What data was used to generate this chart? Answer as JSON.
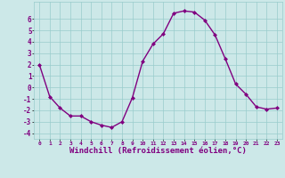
{
  "x": [
    0,
    1,
    2,
    3,
    4,
    5,
    6,
    7,
    8,
    9,
    10,
    11,
    12,
    13,
    14,
    15,
    16,
    17,
    18,
    19,
    20,
    21,
    22,
    23
  ],
  "y": [
    2,
    -0.8,
    -1.8,
    -2.5,
    -2.5,
    -3.0,
    -3.3,
    -3.5,
    -3.0,
    -0.9,
    2.3,
    3.8,
    4.7,
    6.5,
    6.7,
    6.6,
    5.9,
    4.6,
    2.5,
    0.3,
    -0.6,
    -1.7,
    -1.9,
    -1.8
  ],
  "line_color": "#800080",
  "marker": "D",
  "marker_size": 2.0,
  "line_width": 1.0,
  "xlabel": "Windchill (Refroidissement éolien,°C)",
  "xlabel_fontsize": 6.5,
  "background_color": "#cce8e8",
  "grid_color": "#99cccc",
  "tick_label_color": "#800080",
  "axis_label_color": "#800080",
  "xlim": [
    -0.5,
    23.5
  ],
  "ylim": [
    -4.5,
    7.5
  ],
  "yticks": [
    -4,
    -3,
    -2,
    -1,
    0,
    1,
    2,
    3,
    4,
    5,
    6
  ],
  "xticks": [
    0,
    1,
    2,
    3,
    4,
    5,
    6,
    7,
    8,
    9,
    10,
    11,
    12,
    13,
    14,
    15,
    16,
    17,
    18,
    19,
    20,
    21,
    22,
    23
  ]
}
